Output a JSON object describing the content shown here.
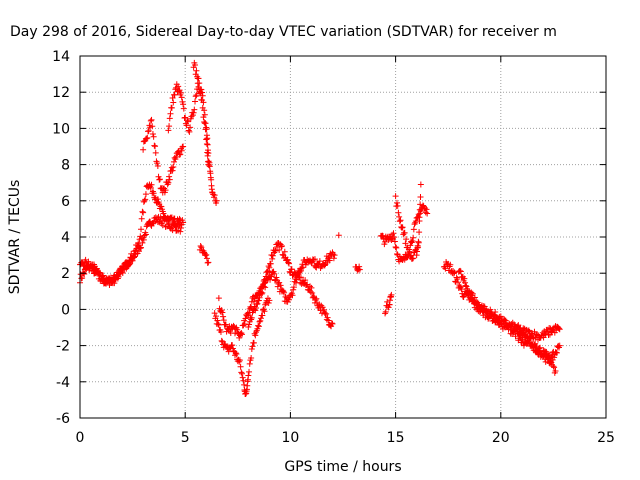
{
  "chart_data": {
    "type": "scatter",
    "title": "Day 298 of 2016, Sidereal Day-to-day VTEC variation (SDTVAR) for receiver m",
    "xlabel": "GPS time / hours",
    "ylabel": "SDTVAR / TECUs",
    "xlim": [
      0,
      25
    ],
    "ylim": [
      -6,
      14
    ],
    "xticks": [
      0,
      5,
      10,
      15,
      20,
      25
    ],
    "yticks": [
      -6,
      -4,
      -2,
      0,
      2,
      4,
      6,
      8,
      10,
      12,
      14
    ],
    "grid": true,
    "marker": "+",
    "series": [
      {
        "name": "SDTVAR",
        "color": "#ff0000",
        "segments": [
          [
            [
              0,
              1.7
            ],
            [
              0.3,
              2.2
            ],
            [
              0.6,
              2.4
            ],
            [
              0.9,
              1.9
            ],
            [
              1.2,
              1.5
            ],
            [
              1.6,
              1.6
            ],
            [
              2.0,
              2.2
            ],
            [
              2.5,
              2.8
            ],
            [
              2.9,
              3.6
            ],
            [
              3.2,
              4.5
            ],
            [
              3.5,
              5.0
            ],
            [
              3.9,
              4.9
            ],
            [
              4.3,
              4.6
            ],
            [
              4.8,
              4.5
            ]
          ],
          [
            [
              0,
              2.3
            ],
            [
              0.3,
              2.6
            ],
            [
              0.6,
              2.2
            ],
            [
              1.0,
              1.7
            ],
            [
              1.4,
              1.6
            ],
            [
              1.8,
              1.9
            ],
            [
              2.3,
              2.6
            ],
            [
              2.8,
              3.6
            ],
            [
              3.0,
              5.5
            ],
            [
              3.2,
              7.0
            ],
            [
              3.5,
              6.5
            ],
            [
              3.8,
              5.6
            ],
            [
              4.1,
              5.0
            ],
            [
              4.5,
              4.8
            ],
            [
              4.9,
              4.8
            ]
          ],
          [
            [
              3.0,
              9.0
            ],
            [
              3.2,
              9.5
            ],
            [
              3.4,
              10.5
            ],
            [
              3.6,
              8.5
            ],
            [
              3.8,
              7.0
            ],
            [
              4.0,
              6.5
            ],
            [
              4.3,
              7.5
            ],
            [
              4.6,
              8.5
            ],
            [
              4.9,
              9.0
            ]
          ],
          [
            [
              4.2,
              10.0
            ],
            [
              4.4,
              11.5
            ],
            [
              4.6,
              12.3
            ],
            [
              4.8,
              11.8
            ],
            [
              5.0,
              10.5
            ],
            [
              5.2,
              10.0
            ],
            [
              5.4,
              11.0
            ],
            [
              5.6,
              12.5
            ],
            [
              5.8,
              12.0
            ],
            [
              6.0,
              10.0
            ],
            [
              6.1,
              8.5
            ],
            [
              6.2,
              7.5
            ],
            [
              6.3,
              6.5
            ],
            [
              6.5,
              6.0
            ]
          ],
          [
            [
              5.4,
              13.6
            ],
            [
              5.6,
              12.8
            ],
            [
              5.8,
              11.5
            ],
            [
              6.0,
              9.5
            ],
            [
              6.1,
              8.0
            ]
          ],
          [
            [
              5.7,
              3.4
            ],
            [
              5.9,
              3.0
            ],
            [
              6.1,
              2.6
            ]
          ],
          [
            [
              6.4,
              -0.3
            ],
            [
              6.6,
              -1.0
            ],
            [
              6.8,
              -1.8
            ],
            [
              7.0,
              -2.3
            ],
            [
              7.2,
              -2.0
            ],
            [
              7.4,
              -2.5
            ],
            [
              7.6,
              -3.0
            ],
            [
              7.8,
              -4.2
            ],
            [
              7.9,
              -4.8
            ],
            [
              8.0,
              -3.5
            ],
            [
              8.2,
              -2.0
            ],
            [
              8.4,
              -1.0
            ],
            [
              8.6,
              -0.6
            ],
            [
              8.8,
              0.2
            ],
            [
              9.0,
              0.5
            ]
          ],
          [
            [
              6.6,
              0.4
            ],
            [
              6.8,
              -0.5
            ],
            [
              7.0,
              -1.2
            ],
            [
              7.3,
              -1.0
            ],
            [
              7.6,
              -1.5
            ],
            [
              7.9,
              -0.5
            ],
            [
              8.2,
              0.5
            ],
            [
              8.5,
              1.0
            ],
            [
              8.8,
              1.5
            ],
            [
              9.0,
              2.5
            ],
            [
              9.2,
              3.2
            ],
            [
              9.4,
              3.6
            ],
            [
              9.6,
              3.3
            ],
            [
              9.8,
              2.8
            ],
            [
              10.0,
              2.2
            ],
            [
              10.3,
              1.8
            ],
            [
              10.6,
              1.5
            ],
            [
              10.9,
              1.2
            ],
            [
              11.2,
              0.5
            ],
            [
              11.5,
              0.0
            ],
            [
              11.8,
              -0.6
            ],
            [
              12.0,
              -0.8
            ]
          ],
          [
            [
              8.0,
              -0.8
            ],
            [
              8.3,
              0.0
            ],
            [
              8.6,
              0.8
            ],
            [
              8.9,
              1.6
            ],
            [
              9.2,
              2.0
            ],
            [
              9.5,
              1.2
            ],
            [
              9.8,
              0.5
            ],
            [
              10.1,
              1.0
            ],
            [
              10.4,
              2.2
            ],
            [
              10.7,
              2.6
            ],
            [
              11.0,
              2.8
            ],
            [
              11.3,
              2.4
            ],
            [
              11.6,
              2.6
            ],
            [
              11.9,
              2.9
            ],
            [
              12.1,
              3.0
            ]
          ],
          [
            [
              12.3,
              4.1
            ]
          ],
          [
            [
              13.1,
              2.4
            ],
            [
              13.3,
              2.2
            ]
          ],
          [
            [
              14.3,
              4.0
            ],
            [
              14.5,
              3.8
            ],
            [
              14.7,
              3.9
            ],
            [
              14.9,
              4.2
            ],
            [
              15.1,
              3.0
            ],
            [
              15.3,
              2.6
            ],
            [
              15.5,
              2.9
            ],
            [
              15.7,
              3.5
            ],
            [
              15.9,
              4.5
            ],
            [
              16.1,
              5.2
            ],
            [
              16.3,
              5.7
            ],
            [
              16.5,
              5.3
            ]
          ],
          [
            [
              14.5,
              0.0
            ],
            [
              14.7,
              0.4
            ],
            [
              14.8,
              0.8
            ]
          ],
          [
            [
              15.0,
              6.1
            ],
            [
              15.2,
              5.0
            ],
            [
              15.4,
              4.2
            ],
            [
              15.6,
              3.2
            ],
            [
              15.8,
              2.8
            ],
            [
              16.0,
              3.2
            ],
            [
              16.1,
              3.8
            ],
            [
              16.2,
              6.9
            ]
          ],
          [
            [
              17.3,
              2.5
            ],
            [
              17.6,
              2.3
            ],
            [
              17.9,
              1.6
            ],
            [
              18.2,
              0.9
            ],
            [
              18.5,
              0.6
            ],
            [
              18.8,
              0.2
            ],
            [
              19.1,
              -0.1
            ],
            [
              19.4,
              -0.3
            ],
            [
              19.7,
              -0.5
            ],
            [
              20.0,
              -0.8
            ],
            [
              20.3,
              -1.0
            ],
            [
              20.6,
              -1.2
            ],
            [
              20.9,
              -1.4
            ],
            [
              21.2,
              -1.6
            ],
            [
              21.5,
              -2.0
            ],
            [
              21.8,
              -2.2
            ],
            [
              22.1,
              -2.5
            ],
            [
              22.4,
              -2.8
            ],
            [
              22.6,
              -3.4
            ]
          ],
          [
            [
              18.0,
              2.2
            ],
            [
              18.3,
              1.4
            ],
            [
              18.6,
              0.8
            ],
            [
              18.9,
              0.3
            ],
            [
              19.2,
              0.0
            ],
            [
              19.5,
              -0.2
            ],
            [
              19.8,
              -0.4
            ],
            [
              20.1,
              -0.7
            ],
            [
              20.4,
              -0.9
            ],
            [
              20.7,
              -1.0
            ],
            [
              21.0,
              -1.2
            ],
            [
              21.3,
              -1.3
            ],
            [
              21.6,
              -1.4
            ],
            [
              21.9,
              -1.5
            ],
            [
              22.2,
              -1.3
            ],
            [
              22.5,
              -1.1
            ],
            [
              22.8,
              -1.1
            ]
          ],
          [
            [
              20.8,
              -1.5
            ],
            [
              21.1,
              -1.9
            ],
            [
              21.4,
              -1.7
            ],
            [
              21.7,
              -2.2
            ],
            [
              22.0,
              -2.5
            ],
            [
              22.3,
              -2.9
            ],
            [
              22.6,
              -2.4
            ],
            [
              22.8,
              -2.0
            ]
          ]
        ]
      }
    ]
  }
}
